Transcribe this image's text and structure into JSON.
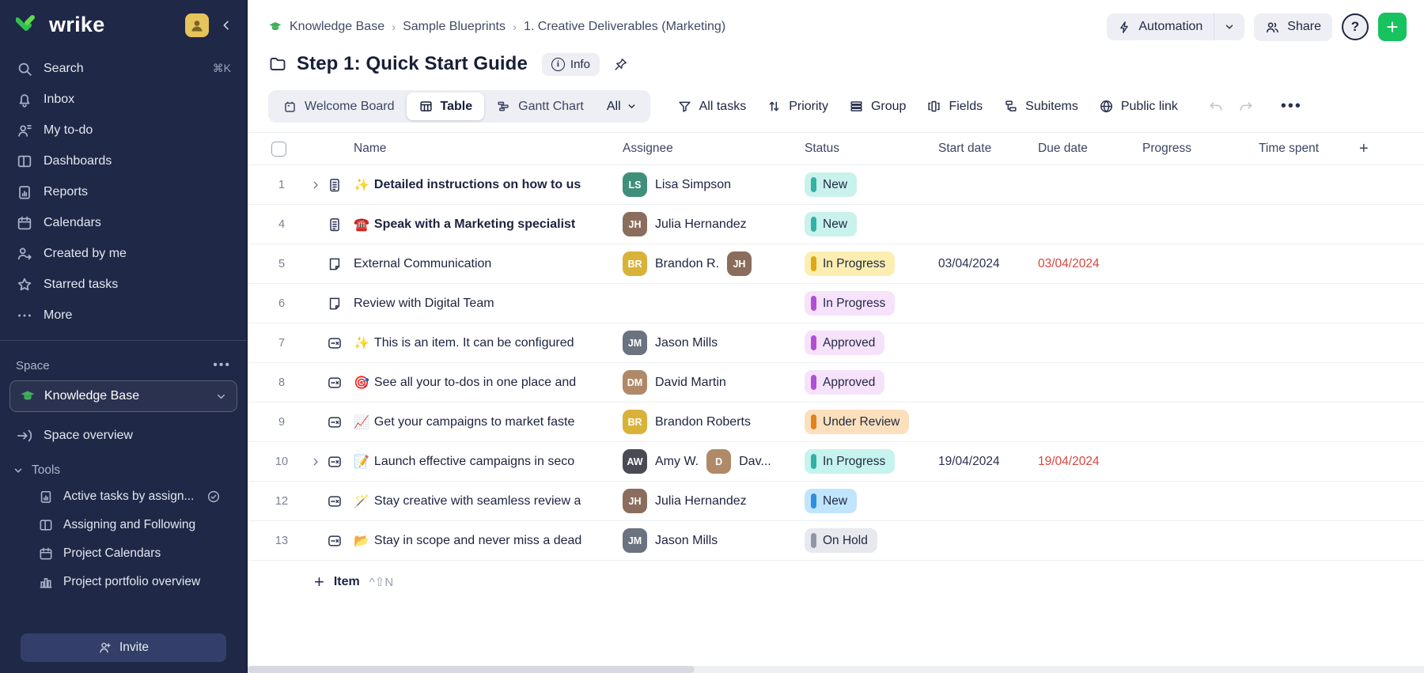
{
  "sidebar": {
    "logo_text": "wrike",
    "nav": [
      {
        "icon": "search",
        "label": "Search",
        "shortcut": "⌘K"
      },
      {
        "icon": "bell",
        "label": "Inbox"
      },
      {
        "icon": "todo",
        "label": "My to-do"
      },
      {
        "icon": "dashboards",
        "label": "Dashboards"
      },
      {
        "icon": "reports",
        "label": "Reports"
      },
      {
        "icon": "calendar",
        "label": "Calendars"
      },
      {
        "icon": "person-arrow",
        "label": "Created by me"
      },
      {
        "icon": "star",
        "label": "Starred tasks"
      },
      {
        "icon": "dots",
        "label": "More"
      }
    ],
    "space": {
      "label": "Space",
      "selected_space": "Knowledge Base",
      "overview": "Space overview",
      "tools_label": "Tools",
      "tools": [
        {
          "icon": "reports",
          "label": "Active tasks by assign...",
          "badge": "check"
        },
        {
          "icon": "dashboards",
          "label": "Assigning and Following"
        },
        {
          "icon": "calendar",
          "label": "Project Calendars"
        },
        {
          "icon": "chart",
          "label": "Project portfolio overview"
        }
      ]
    },
    "invite_label": "Invite",
    "colors": {
      "bg": "#1f2846",
      "accent_green": "#2fc24f"
    }
  },
  "header": {
    "breadcrumb": [
      "Knowledge Base",
      "Sample Blueprints",
      "1. Creative Deliverables (Marketing)"
    ],
    "title": "Step 1: Quick Start Guide",
    "info_label": "Info",
    "automation_label": "Automation",
    "share_label": "Share",
    "help_label": "?",
    "add_label": "+"
  },
  "toolbar": {
    "views": [
      {
        "icon": "board",
        "label": "Welcome Board",
        "selected": false
      },
      {
        "icon": "table",
        "label": "Table",
        "selected": true
      },
      {
        "icon": "gantt",
        "label": "Gantt Chart",
        "selected": false
      }
    ],
    "view_filter": "All",
    "actions": [
      {
        "icon": "funnel",
        "label": "All tasks"
      },
      {
        "icon": "sort",
        "label": "Priority"
      },
      {
        "icon": "group",
        "label": "Group"
      },
      {
        "icon": "fields",
        "label": "Fields"
      },
      {
        "icon": "subitems",
        "label": "Subitems"
      },
      {
        "icon": "globe",
        "label": "Public link"
      }
    ]
  },
  "table": {
    "columns": [
      "Name",
      "Assignee",
      "Status",
      "Start date",
      "Due date",
      "Progress",
      "Time spent"
    ],
    "add_column_label": "+",
    "add_item_label": "Item",
    "add_item_shortcut": "^⇧N",
    "rows": [
      {
        "num": "1",
        "expandable": true,
        "icon": "task",
        "emoji": "✨",
        "name": "Detailed instructions on how to us",
        "bold": true,
        "assignees": [
          {
            "initials": "LS",
            "name": "Lisa Simpson",
            "color": "#3f8f7b"
          }
        ],
        "status": "New",
        "status_bg": "#c9f2ec",
        "status_bar": "#30b2a4",
        "start": "",
        "due": "",
        "due_overdue": false
      },
      {
        "num": "4",
        "expandable": false,
        "icon": "task",
        "emoji": "☎️",
        "name": "Speak with a Marketing specialist",
        "bold": true,
        "assignees": [
          {
            "initials": "JH",
            "name": "Julia Hernandez",
            "color": "#8a6d5c"
          }
        ],
        "status": "New",
        "status_bg": "#c9f2ec",
        "status_bar": "#30b2a4",
        "start": "",
        "due": "",
        "due_overdue": false
      },
      {
        "num": "5",
        "expandable": false,
        "icon": "file",
        "emoji": "",
        "name": "External Communication",
        "bold": false,
        "assignees": [
          {
            "initials": "BR",
            "name": "Brandon R.",
            "color": "#d9b23a"
          },
          {
            "initials": "JH",
            "name": "",
            "color": "#8a6d5c"
          }
        ],
        "status": "In Progress",
        "status_bg": "#fceeb0",
        "status_bar": "#dfa712",
        "start": "03/04/2024",
        "due": "03/04/2024",
        "due_overdue": true
      },
      {
        "num": "6",
        "expandable": false,
        "icon": "file",
        "emoji": "",
        "name": "Review with Digital Team",
        "bold": false,
        "assignees": [],
        "status": "In Progress",
        "status_bg": "#f7e2fb",
        "status_bar": "#b04fd6",
        "start": "",
        "due": "",
        "due_overdue": false
      },
      {
        "num": "7",
        "expandable": false,
        "icon": "item",
        "emoji": "✨",
        "name": "This is an item. It can be configured",
        "bold": false,
        "assignees": [
          {
            "initials": "JM",
            "name": "Jason Mills",
            "color": "#6b7280"
          }
        ],
        "status": "Approved",
        "status_bg": "#f7e2fb",
        "status_bar": "#b04fd6",
        "start": "",
        "due": "",
        "due_overdue": false
      },
      {
        "num": "8",
        "expandable": false,
        "icon": "item",
        "emoji": "🎯",
        "name": "See all your to-dos in one place and",
        "bold": false,
        "assignees": [
          {
            "initials": "DM",
            "name": "David Martin",
            "color": "#b08968"
          }
        ],
        "status": "Approved",
        "status_bg": "#f7e2fb",
        "status_bar": "#b04fd6",
        "start": "",
        "due": "",
        "due_overdue": false
      },
      {
        "num": "9",
        "expandable": false,
        "icon": "item",
        "emoji": "📈",
        "name": "Get your campaigns to market faste",
        "bold": false,
        "assignees": [
          {
            "initials": "BR",
            "name": "Brandon Roberts",
            "color": "#d9b23a"
          }
        ],
        "status": "Under Review",
        "status_bg": "#fce0bd",
        "status_bar": "#e0821d",
        "start": "",
        "due": "",
        "due_overdue": false
      },
      {
        "num": "10",
        "expandable": true,
        "icon": "item",
        "emoji": "📝",
        "name": "Launch effective campaigns in seco",
        "bold": false,
        "assignees": [
          {
            "initials": "AW",
            "name": "Amy W.",
            "color": "#4a4a55"
          },
          {
            "initials": "D",
            "name": "Dav...",
            "color": "#b08968"
          }
        ],
        "status": "In Progress",
        "status_bg": "#c6f3ee",
        "status_bar": "#30b2a4",
        "start": "19/04/2024",
        "due": "19/04/2024",
        "due_overdue": true
      },
      {
        "num": "12",
        "expandable": false,
        "icon": "item",
        "emoji": "🪄",
        "name": "Stay creative with seamless review a",
        "bold": false,
        "assignees": [
          {
            "initials": "JH",
            "name": "Julia Hernandez",
            "color": "#8a6d5c"
          }
        ],
        "status": "New",
        "status_bg": "#c0e5fc",
        "status_bar": "#2f8fdb",
        "start": "",
        "due": "",
        "due_overdue": false
      },
      {
        "num": "13",
        "expandable": false,
        "icon": "item",
        "emoji": "📂",
        "name": "Stay in scope and never miss a dead",
        "bold": false,
        "assignees": [
          {
            "initials": "JM",
            "name": "Jason Mills",
            "color": "#6b7280"
          }
        ],
        "status": "On Hold",
        "status_bg": "#e7e9ee",
        "status_bar": "#8f97a6",
        "start": "",
        "due": "",
        "due_overdue": false
      }
    ]
  }
}
